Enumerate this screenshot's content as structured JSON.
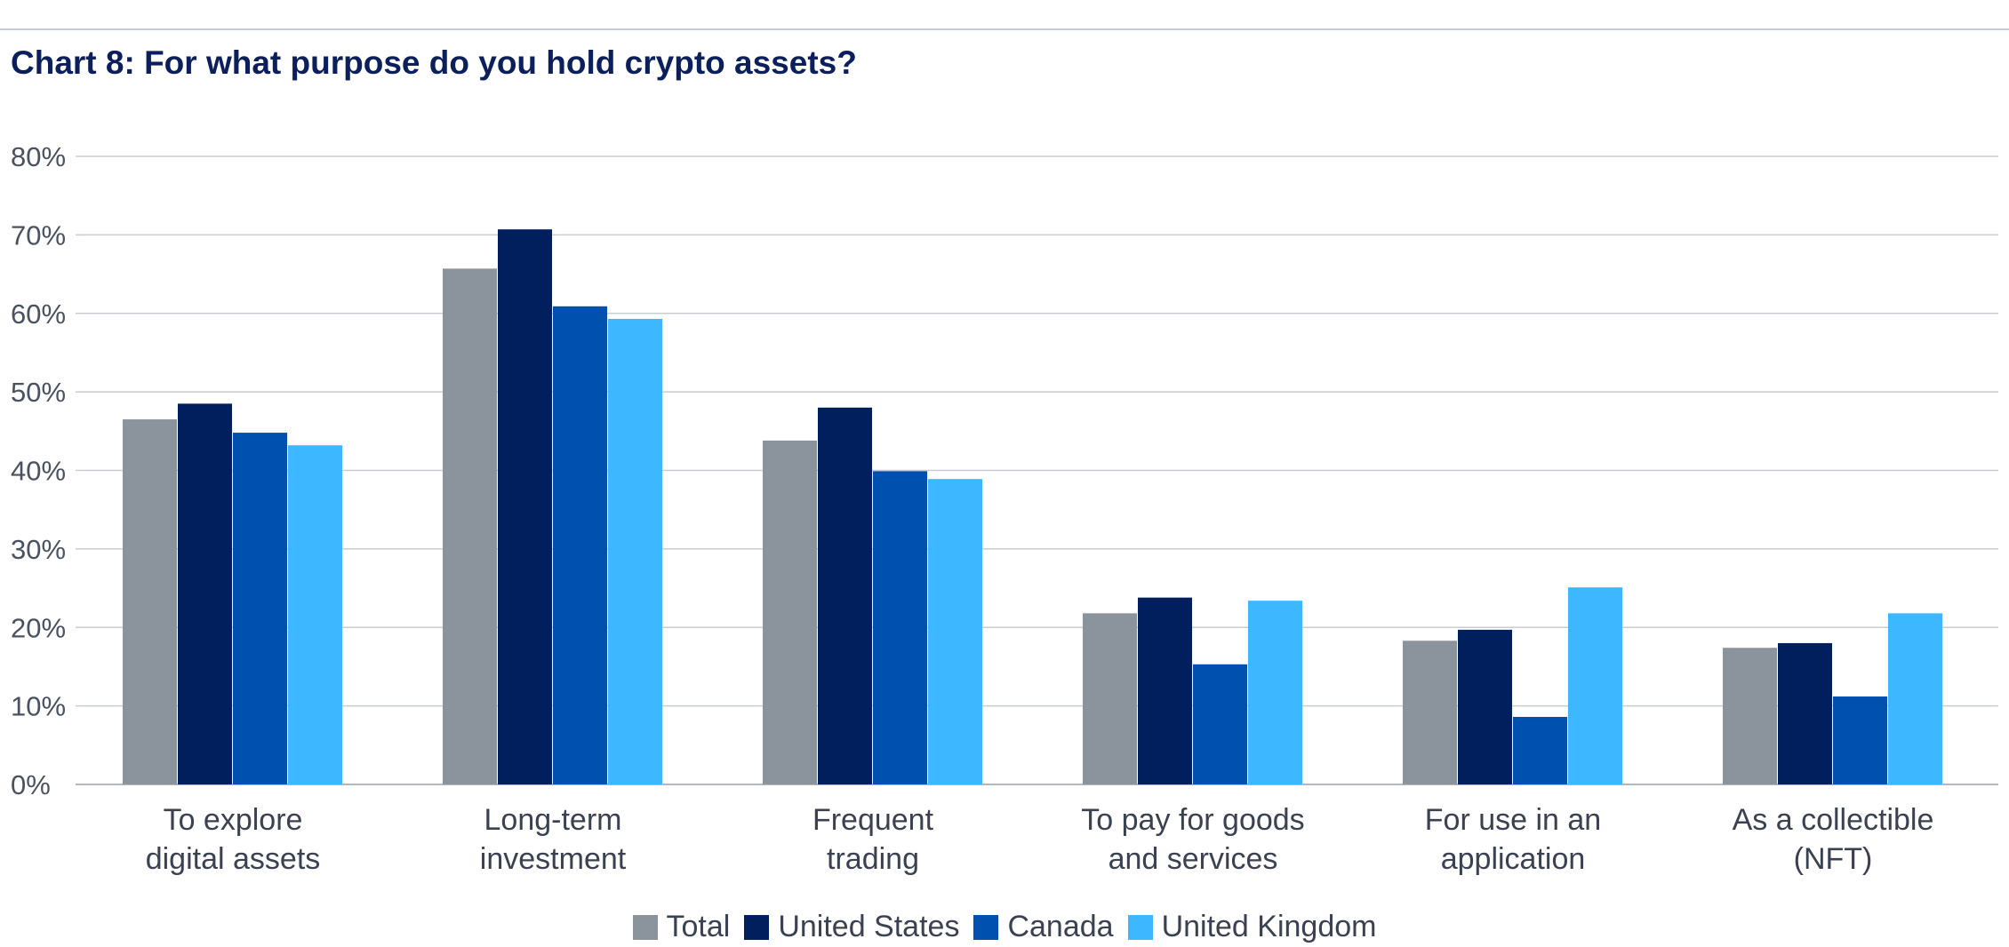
{
  "chart_data": {
    "type": "bar",
    "title": "Chart 8: For what purpose do you hold crypto assets?",
    "xlabel": "",
    "ylabel": "",
    "ylim": [
      0,
      80
    ],
    "yticks": [
      0,
      10,
      20,
      30,
      40,
      50,
      60,
      70,
      80
    ],
    "ytick_labels": [
      "0%",
      "10%",
      "20%",
      "30%",
      "40%",
      "50%",
      "60%",
      "70%",
      "80%"
    ],
    "grid": true,
    "legend_position": "bottom-center",
    "categories": [
      [
        "To explore",
        "digital assets"
      ],
      [
        "Long-term",
        "investment"
      ],
      [
        "Frequent",
        "trading"
      ],
      [
        "To pay for goods",
        "and services"
      ],
      [
        "For use in an",
        "application"
      ],
      [
        "As a collectible",
        "(NFT)"
      ]
    ],
    "series": [
      {
        "name": "Total",
        "color": "#8b939c",
        "values": [
          46.5,
          65.7,
          43.8,
          21.8,
          18.3,
          17.4
        ]
      },
      {
        "name": "United States",
        "color": "#001f5c",
        "values": [
          48.5,
          70.7,
          48.0,
          23.8,
          19.7,
          18.0
        ]
      },
      {
        "name": "Canada",
        "color": "#0050b0",
        "values": [
          44.8,
          60.9,
          39.9,
          15.3,
          8.6,
          11.2
        ]
      },
      {
        "name": "United Kingdom",
        "color": "#3db7ff",
        "values": [
          43.2,
          59.3,
          38.9,
          23.4,
          25.1,
          21.8
        ]
      }
    ]
  }
}
